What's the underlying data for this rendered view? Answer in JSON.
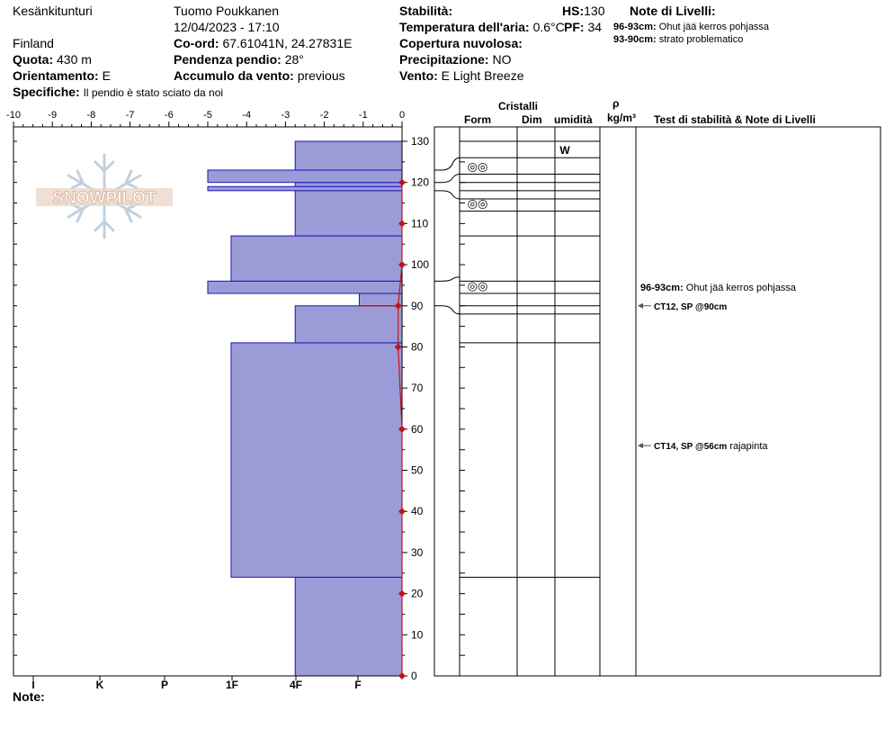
{
  "header": {
    "location": "Kesänkitunturi",
    "country": "Finland",
    "observer": "Tuomo Poukkanen",
    "datetime": "12/04/2023 - 17:10",
    "elevation_label": "Quota:",
    "elevation_value": "430 m",
    "aspect_label": "Orientamento:",
    "aspect_value": "E",
    "specifics_label": "Specifiche:",
    "specifics_value": "Il pendio è stato sciato da noi",
    "coord_label": "Co-ord:",
    "coord_value": "67.61041N, 24.27831E",
    "slope_label": "Pendenza pendio:",
    "slope_value": "28°",
    "wind_loading_label": "Accumulo da vento:",
    "wind_loading_value": "previous",
    "stability_label": "Stabilità:",
    "air_temp_label": "Temperatura dell'aria:",
    "air_temp_value": "0.6°C",
    "cloud_label": "Copertura nuvolosa:",
    "precip_label": "Precipitazione:",
    "precip_value": "NO",
    "wind_label": "Vento:",
    "wind_value": "E  Light Breeze",
    "hs_label": "HS:",
    "hs_value": "130",
    "pf_label": "PF:",
    "pf_value": "34",
    "layer_notes_title": "Note di Livelli:",
    "layer_notes": [
      {
        "range": "96-93cm:",
        "text": "Ohut jää kerros pohjassa"
      },
      {
        "range": "93-90cm:",
        "text": "strato problematico"
      }
    ]
  },
  "logo_text": "SNOWPILOT",
  "note_label": "Note:",
  "table_headers": {
    "cristalli": "Cristalli",
    "form": "Form",
    "dim": "Dim",
    "umidita": "umidità",
    "rho": "ρ",
    "rho_unit": "kg/m³",
    "tests": "Test di stabilità & Note di Livelli"
  },
  "chart_data": {
    "type": "snow_profile",
    "temp_axis": {
      "min": -10,
      "max": 0,
      "ticks": [
        "-10",
        "-9",
        "-8",
        "-7",
        "-6",
        "-5",
        "-4",
        "-3",
        "-2",
        "-1",
        "0"
      ]
    },
    "hardness_axis": {
      "labels": [
        "I",
        "K",
        "P",
        "1F",
        "4F",
        "F"
      ]
    },
    "depth_axis": {
      "min": 0,
      "max": 130,
      "ticks": [
        "0",
        "10",
        "20",
        "30",
        "40",
        "50",
        "60",
        "70",
        "80",
        "90",
        "100",
        "110",
        "120",
        "130"
      ]
    },
    "hardness_layers": [
      {
        "bottom": 0,
        "top": 24,
        "temp_value": -2.75
      },
      {
        "bottom": 24,
        "top": 81,
        "temp_value": -4.4
      },
      {
        "bottom": 81,
        "top": 90,
        "temp_value": -2.75
      },
      {
        "bottom": 90,
        "top": 93,
        "temp_value": -1.1
      },
      {
        "bottom": 93,
        "top": 96,
        "temp_value": -5
      },
      {
        "bottom": 96,
        "top": 107,
        "temp_value": -4.4
      },
      {
        "bottom": 107,
        "top": 118,
        "temp_value": -2.75
      },
      {
        "bottom": 118,
        "top": 119,
        "temp_value": -5
      },
      {
        "bottom": 119,
        "top": 120,
        "temp_value": -2.75
      },
      {
        "bottom": 120,
        "top": 123,
        "temp_value": -5
      },
      {
        "bottom": 123,
        "top": 130,
        "temp_value": -2.75
      }
    ],
    "temperature_points": [
      {
        "depth": 0,
        "temp": 0
      },
      {
        "depth": 20,
        "temp": 0
      },
      {
        "depth": 40,
        "temp": 0
      },
      {
        "depth": 60,
        "temp": 0
      },
      {
        "depth": 80,
        "temp": -0.1
      },
      {
        "depth": 90,
        "temp": -0.1
      },
      {
        "depth": 100,
        "temp": 0
      },
      {
        "depth": 110,
        "temp": 0
      },
      {
        "depth": 120,
        "temp": 0
      }
    ],
    "layer_boundaries": [
      24,
      81,
      88,
      90,
      93,
      96,
      107,
      113,
      116,
      118,
      120,
      122,
      126,
      130
    ],
    "grain_rows": [
      {
        "top": 126,
        "bottom": 122,
        "symbol": "◎◎"
      },
      {
        "top": 117,
        "bottom": 113,
        "symbol": "◎◎"
      },
      {
        "top": 97,
        "bottom": 93,
        "symbol": "◎◎"
      }
    ],
    "wetness_row": {
      "top": 130,
      "bottom": 126,
      "value": "W"
    },
    "right_notes": [
      {
        "depth": 94.5,
        "bold": "96-93cm:",
        "text": "Ohut jää kerros pohjassa",
        "arrow": false
      },
      {
        "depth": 90,
        "bold": "CT12, SP @90cm",
        "text": "",
        "arrow": true
      },
      {
        "depth": 56,
        "bold": "CT14, SP @56cm",
        "text": "rajapinta",
        "arrow": true
      }
    ],
    "colors": {
      "fill": "#9b9bd8",
      "stroke": "#1a1ab0",
      "temp": "#c0141c"
    }
  }
}
